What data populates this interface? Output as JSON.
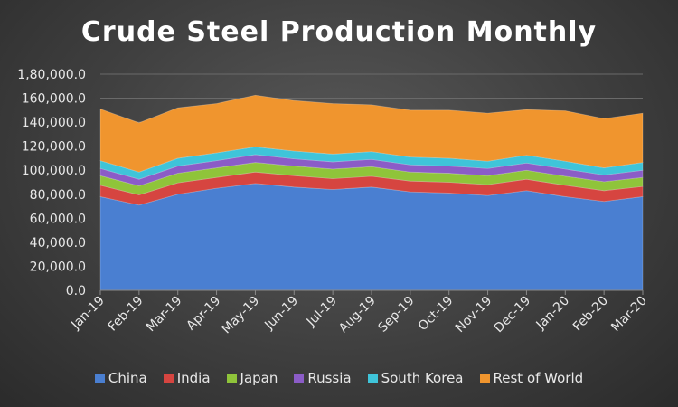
{
  "chart_data": {
    "type": "area",
    "stacked": true,
    "title": "Crude Steel Production Monthly",
    "xlabel": "",
    "ylabel": "",
    "ylim": [
      0,
      180000
    ],
    "yticks": [
      0,
      20000,
      40000,
      60000,
      80000,
      100000,
      120000,
      140000,
      160000,
      180000
    ],
    "ytick_labels": [
      "0.0",
      "20,000.0",
      "40,000.0",
      "60,000.0",
      "80,000.0",
      "100,000.0",
      "120,000.0",
      "140,000.0",
      "160,000.0",
      "1,80,000.0"
    ],
    "categories": [
      "Jan-19",
      "Feb-19",
      "Mar-19",
      "Apr-19",
      "May-19",
      "Jun-19",
      "Jul-19",
      "Aug-19",
      "Sep-19",
      "Oct-19",
      "Nov-19",
      "Dec-19",
      "Jan-20",
      "Feb-20",
      "Mar-20"
    ],
    "grid": true,
    "legend_position": "bottom",
    "series": [
      {
        "name": "China",
        "color": "#4a7fd1",
        "values": [
          78000,
          71000,
          80000,
          85000,
          89000,
          86000,
          84000,
          86000,
          82000,
          81000,
          79000,
          83000,
          78000,
          74000,
          78000
        ]
      },
      {
        "name": "India",
        "color": "#d64540",
        "values": [
          9500,
          8500,
          9500,
          9000,
          9500,
          9500,
          9000,
          9000,
          9000,
          9000,
          9000,
          9500,
          9500,
          9000,
          8500
        ]
      },
      {
        "name": "Japan",
        "color": "#8fc43a",
        "values": [
          8000,
          7500,
          8000,
          8000,
          8000,
          8000,
          8000,
          8000,
          7500,
          7500,
          7500,
          7500,
          7500,
          7500,
          7500
        ]
      },
      {
        "name": "Russia",
        "color": "#8b5cc7",
        "values": [
          6000,
          5500,
          6000,
          6000,
          6500,
          6000,
          6000,
          6000,
          6000,
          6000,
          6000,
          6000,
          6000,
          5500,
          6000
        ]
      },
      {
        "name": "South Korea",
        "color": "#3fc4d9",
        "values": [
          6500,
          6000,
          6500,
          6500,
          6500,
          6500,
          6500,
          6500,
          6500,
          6500,
          6000,
          6500,
          6500,
          6000,
          6500
        ]
      },
      {
        "name": "Rest of World",
        "color": "#f0952e",
        "values": [
          43000,
          41000,
          42000,
          41000,
          43000,
          42000,
          42000,
          39000,
          39000,
          40000,
          40000,
          38000,
          42000,
          41000,
          41000
        ]
      }
    ]
  }
}
